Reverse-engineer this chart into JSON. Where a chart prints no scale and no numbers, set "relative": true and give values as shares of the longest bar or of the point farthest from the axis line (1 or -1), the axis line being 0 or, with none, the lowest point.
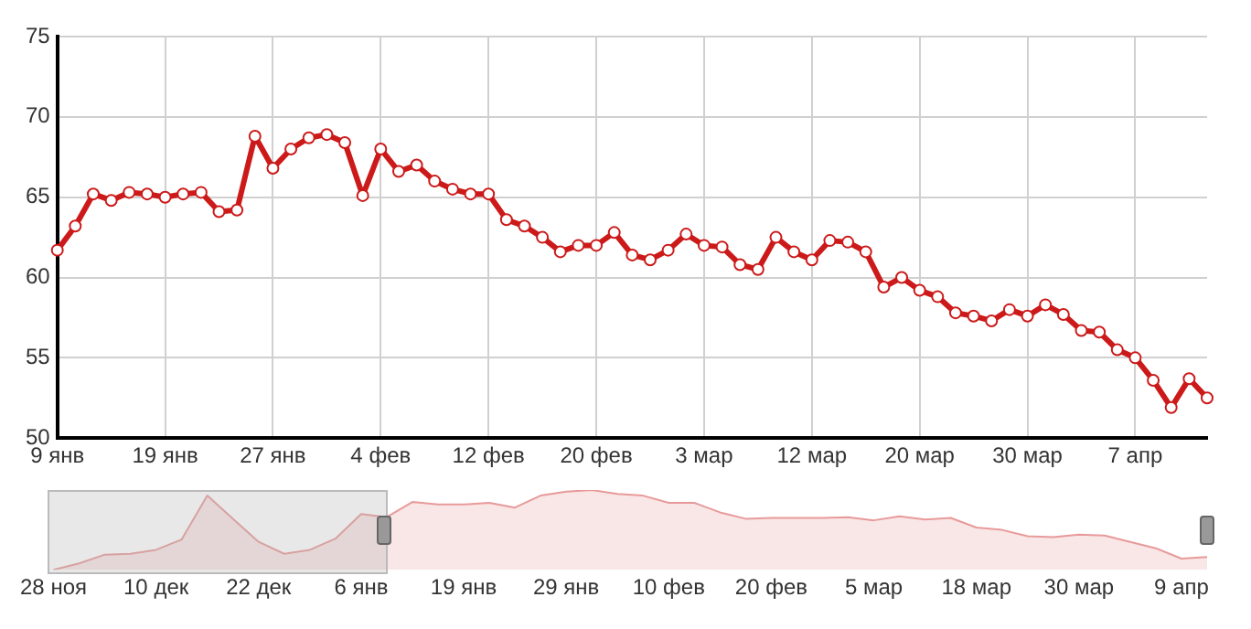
{
  "chart_data": [
    {
      "type": "line",
      "categories": [
        "9 янв",
        null,
        null,
        null,
        null,
        null,
        "19 янв",
        null,
        null,
        null,
        null,
        null,
        "27 янв",
        null,
        null,
        null,
        null,
        null,
        "4 фев",
        null,
        null,
        null,
        null,
        null,
        "12 фев",
        null,
        null,
        null,
        null,
        null,
        "20 фев",
        null,
        null,
        null,
        null,
        null,
        "3 мар",
        null,
        null,
        null,
        null,
        null,
        "12 мар",
        null,
        null,
        null,
        null,
        null,
        "20 мар",
        null,
        null,
        null,
        null,
        null,
        "30 мар",
        null,
        null,
        null,
        null,
        null,
        "7 апр",
        null,
        null,
        null,
        null
      ],
      "values": [
        61.7,
        63.2,
        65.2,
        64.8,
        65.3,
        65.2,
        65.0,
        65.2,
        65.3,
        64.1,
        64.2,
        68.8,
        66.8,
        68.0,
        68.7,
        68.9,
        68.4,
        65.1,
        68.0,
        66.6,
        67.0,
        66.0,
        65.5,
        65.2,
        65.2,
        63.6,
        63.2,
        62.5,
        61.6,
        62.0,
        62.0,
        62.8,
        61.4,
        61.1,
        61.7,
        62.7,
        62.0,
        61.9,
        60.8,
        60.5,
        62.5,
        61.6,
        61.1,
        62.3,
        62.2,
        61.6,
        59.4,
        60.0,
        59.2,
        58.8,
        57.8,
        57.6,
        57.3,
        58.0,
        57.6,
        58.3,
        57.7,
        56.7,
        56.6,
        55.5,
        55.0,
        53.6,
        51.9,
        53.7,
        52.5
      ],
      "color": "#cc1a1a",
      "ylim": [
        50,
        75
      ],
      "yticks": [
        50,
        55,
        60,
        65,
        70,
        75
      ],
      "grid": true,
      "marker": "circle"
    },
    {
      "type": "area",
      "relative": true,
      "categories": [
        "28 ноя",
        null,
        null,
        null,
        "10 дек",
        null,
        null,
        null,
        "22 дек",
        null,
        null,
        null,
        "6 янв",
        null,
        null,
        null,
        "19 янв",
        null,
        null,
        null,
        "29 янв",
        null,
        null,
        null,
        "10 фев",
        null,
        null,
        null,
        "20 фев",
        null,
        null,
        null,
        "5 мар",
        null,
        null,
        null,
        "18 мар",
        null,
        null,
        null,
        "30 мар",
        null,
        null,
        null,
        "9 апр",
        null
      ],
      "values": [
        0,
        0.08,
        0.19,
        0.2,
        0.25,
        0.38,
        0.93,
        0.64,
        0.35,
        0.2,
        0.25,
        0.39,
        0.7,
        0.66,
        0.85,
        0.82,
        0.82,
        0.84,
        0.78,
        0.93,
        0.98,
        1,
        0.95,
        0.93,
        0.84,
        0.84,
        0.72,
        0.64,
        0.65,
        0.65,
        0.65,
        0.66,
        0.62,
        0.67,
        0.63,
        0.65,
        0.53,
        0.5,
        0.42,
        0.41,
        0.44,
        0.43,
        0.35,
        0.27,
        0.14,
        0.16
      ],
      "color": "#e89a9a"
    }
  ]
}
